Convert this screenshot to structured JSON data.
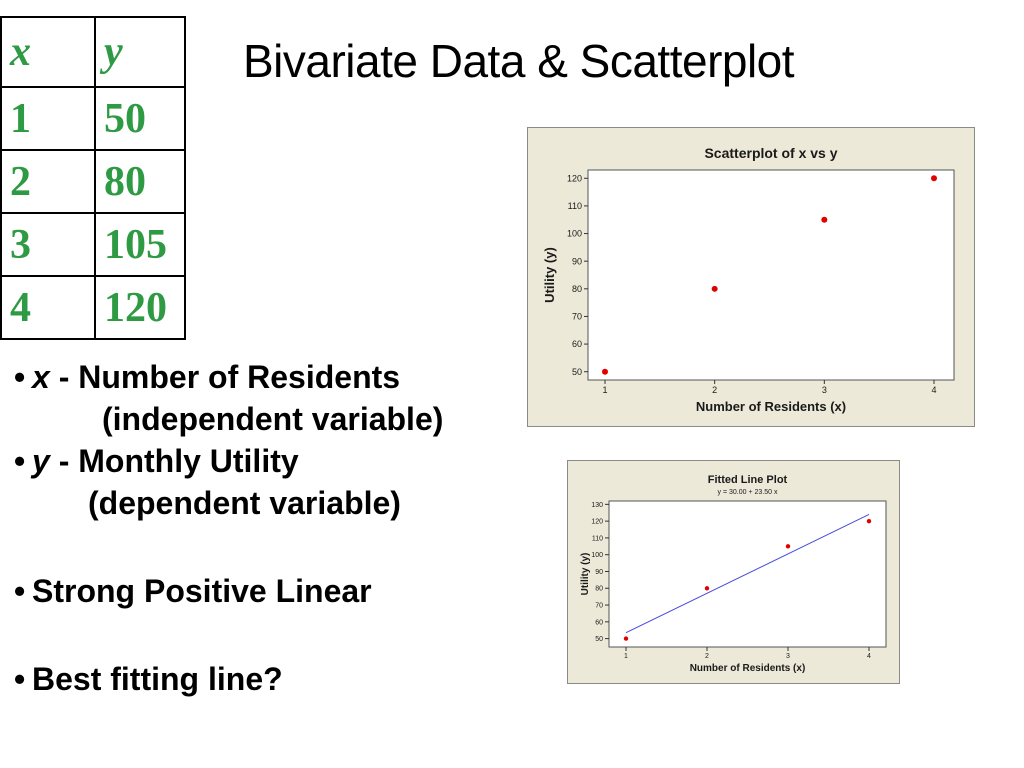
{
  "title": "Bivariate Data & Scatterplot",
  "table": {
    "headers": [
      "x",
      "y"
    ],
    "rows": [
      [
        "1",
        "50"
      ],
      [
        "2",
        "80"
      ],
      [
        "3",
        "105"
      ],
      [
        "4",
        "120"
      ]
    ]
  },
  "bullets": {
    "b1_var": "x",
    "b1_text": " - Number of Residents",
    "b1_sub": "(independent variable)",
    "b2_var": "y",
    "b2_text": " - Monthly Utility",
    "b2_sub": "(dependent variable)",
    "b3": "Strong Positive Linear",
    "b4": "Best fitting line?"
  },
  "colors": {
    "table_text": "#2f9a44",
    "point": "#e00000",
    "fit_line": "#4a4ae0",
    "panel_bg": "#ece9d8"
  },
  "chart_data": [
    {
      "type": "scatter",
      "title": "Scatterplot of x vs y",
      "subtitle": "",
      "xlabel": "Number of Residents (x)",
      "ylabel": "Utility (y)",
      "x": [
        1,
        2,
        3,
        4
      ],
      "y": [
        50,
        80,
        105,
        120
      ],
      "xlim": [
        1,
        4
      ],
      "ylim": [
        47,
        123
      ],
      "xticks": [
        1,
        2,
        3,
        4
      ],
      "yticks": [
        50,
        60,
        70,
        80,
        90,
        100,
        110,
        120
      ],
      "grid": false
    },
    {
      "type": "scatter",
      "title": "Fitted Line Plot",
      "subtitle": "y =  30.00 + 23.50 x",
      "xlabel": "Number of Residents (x)",
      "ylabel": "Utility (y)",
      "x": [
        1,
        2,
        3,
        4
      ],
      "y": [
        50,
        80,
        105,
        120
      ],
      "fit": {
        "intercept": 30.0,
        "slope": 23.5
      },
      "xlim": [
        1,
        4
      ],
      "ylim": [
        45,
        132
      ],
      "xticks": [
        1,
        2,
        3,
        4
      ],
      "yticks": [
        50,
        60,
        70,
        80,
        90,
        100,
        110,
        120,
        130
      ],
      "grid": false
    }
  ]
}
